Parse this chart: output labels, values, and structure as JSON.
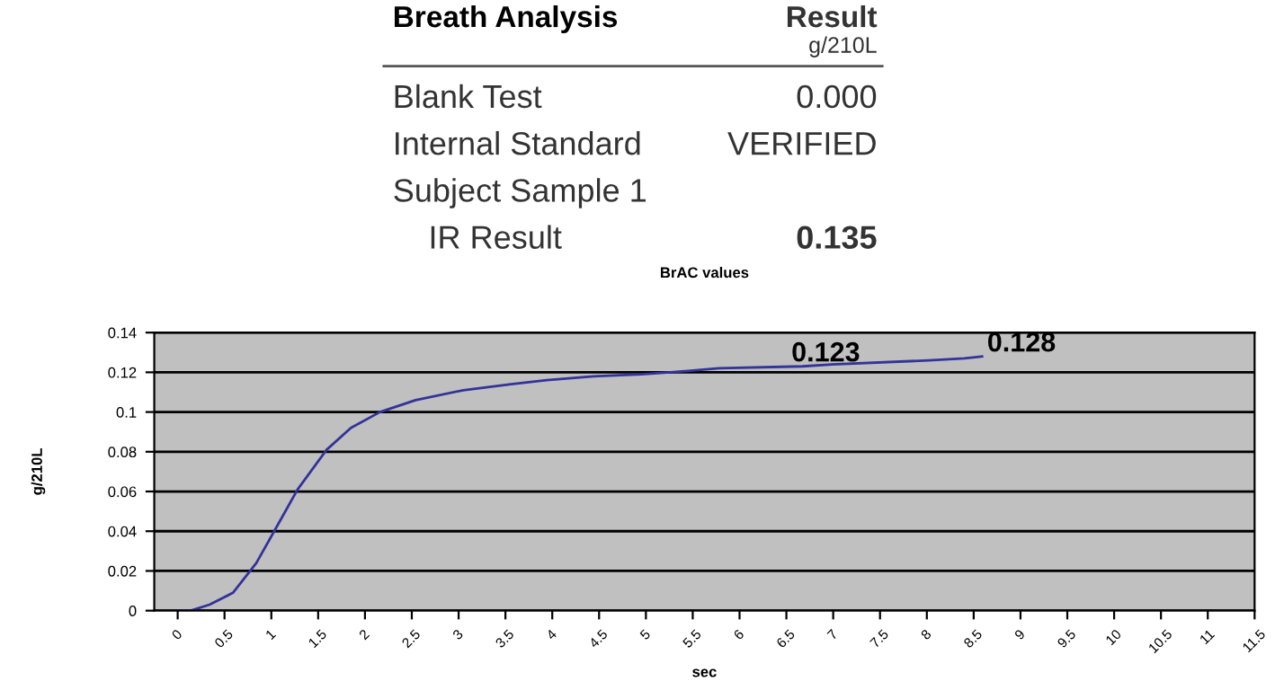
{
  "chart_data": [
    {
      "type": "other",
      "title": "Breath Analysis",
      "annotations": [
        "Result",
        "g/210L",
        "Blank Test",
        "0.000",
        "Internal Standard",
        "VERIFIED",
        "Subject Sample 1",
        "IR Result",
        "0.135"
      ]
    },
    {
      "type": "line",
      "title": "BrAC values",
      "xlabel": "sec",
      "ylabel": "g/210L",
      "xlim": [
        -0.25,
        11.5
      ],
      "xticks": [
        0,
        0.5,
        1,
        1.5,
        2,
        2.5,
        3,
        3.5,
        4,
        4.5,
        5,
        5.5,
        6,
        6.5,
        7,
        7.5,
        8,
        8.5,
        9,
        9.5,
        10,
        10.5,
        11,
        11.5
      ],
      "ylim": [
        0,
        0.14
      ],
      "yticks": [
        0,
        0.02,
        0.04,
        0.06,
        0.08,
        0.1,
        0.12,
        0.14
      ],
      "grid": "y",
      "series": [
        {
          "color": "#333399",
          "x": [
            0,
            0.14,
            0.34,
            0.59,
            0.84,
            1.09,
            1.28,
            1.59,
            1.85,
            2.16,
            2.54,
            3.05,
            3.56,
            3.94,
            4.44,
            4.95,
            5.26,
            5.78,
            6.67,
            6.99,
            8.02,
            8.4,
            8.59
          ],
          "values": [
            0,
            0,
            0.003,
            0.009,
            0.024,
            0.045,
            0.061,
            0.081,
            0.092,
            0.1,
            0.106,
            0.111,
            0.114,
            0.116,
            0.118,
            0.119,
            0.12,
            0.122,
            0.123,
            0.124,
            0.126,
            0.127,
            0.128
          ]
        }
      ],
      "annotations": [
        {
          "text": "0.123",
          "x": 6.5,
          "y": 0.123
        },
        {
          "text": "0.128",
          "x": 8.59,
          "y": 0.128
        }
      ]
    }
  ]
}
